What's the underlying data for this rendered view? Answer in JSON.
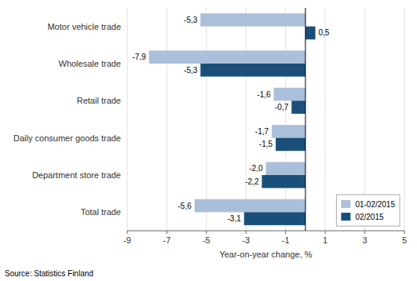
{
  "chart_data": {
    "type": "bar",
    "orientation": "horizontal",
    "categories": [
      "Motor vehicle trade",
      "Wholesale trade",
      "Retail trade",
      "Daily consumer goods trade",
      "Department store trade",
      "Total trade"
    ],
    "series": [
      {
        "name": "01-02/2015",
        "color": "#aabfda",
        "values": [
          -5.3,
          -7.9,
          -1.6,
          -1.7,
          -2.0,
          -5.6
        ],
        "value_labels": [
          "-5,3",
          "-7,9",
          "-1,6",
          "-1,7",
          "-2,0",
          "-5,6"
        ]
      },
      {
        "name": "02/2015",
        "color": "#1a4f7a",
        "values": [
          0.5,
          -5.3,
          -0.7,
          -1.5,
          -2.2,
          -3.1
        ],
        "value_labels": [
          "0,5",
          "-5,3",
          "-0,7",
          "-1,5",
          "-2,2",
          "-3,1"
        ]
      }
    ],
    "x_label": "Year-on-year change, %",
    "xlim": [
      -9,
      5
    ],
    "xticks": [
      -9,
      -7,
      -5,
      -3,
      -1,
      1,
      3,
      5
    ],
    "grid": true,
    "legend": "lower right",
    "data_labels": true,
    "source": "Source: Statistics Finland"
  }
}
